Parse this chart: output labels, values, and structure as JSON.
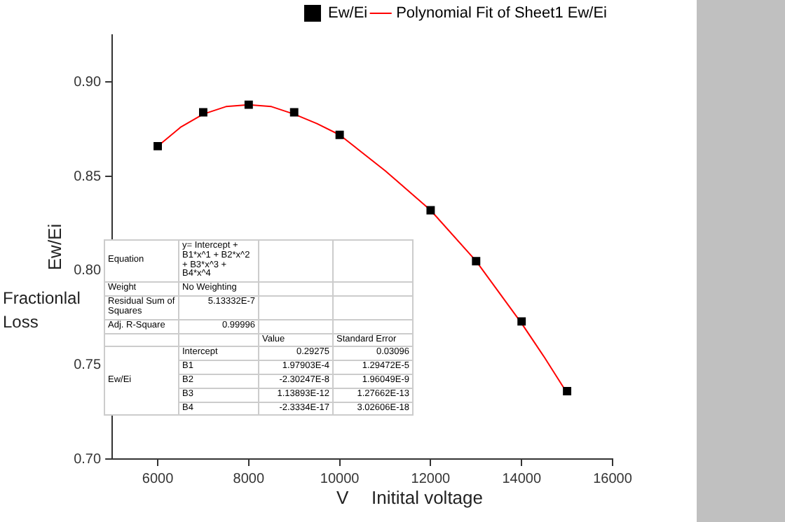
{
  "chart_data": {
    "type": "scatter",
    "xlabel": "Initital voltage",
    "ylabel": "Ew/Ei",
    "xlim": [
      5000,
      16000
    ],
    "xticks": [
      6000,
      8000,
      10000,
      12000,
      14000,
      16000
    ],
    "ylim": [
      0.7,
      0.925
    ],
    "yticks": [
      {
        "value": 0.7,
        "label": "0.70"
      },
      {
        "value": 0.75,
        "label": "0.75"
      },
      {
        "value": 0.8,
        "label": "0.80"
      },
      {
        "value": 0.85,
        "label": "0.85"
      },
      {
        "value": 0.9,
        "label": "0.90"
      }
    ],
    "grid": false,
    "legend": "top right",
    "series": [
      {
        "name": "Ew/Ei",
        "marker": "square",
        "color": "#000000",
        "x": [
          6000,
          7000,
          8000,
          9000,
          10000,
          12000,
          13000,
          14000,
          15000
        ],
        "values": [
          0.866,
          0.884,
          0.888,
          0.884,
          0.872,
          0.832,
          0.805,
          0.773,
          0.736
        ]
      },
      {
        "name": "Polynomial Fit of Sheet1 Ew/Ei",
        "type": "line",
        "marker": "none",
        "color": "#ff0000",
        "x": [
          6000,
          6500,
          7000,
          7500,
          8000,
          8500,
          9000,
          9500,
          10000,
          11000,
          12000,
          13000,
          14000,
          14500,
          15000
        ],
        "values": [
          0.866,
          0.876,
          0.883,
          0.887,
          0.888,
          0.887,
          0.883,
          0.878,
          0.872,
          0.853,
          0.832,
          0.805,
          0.772,
          0.754,
          0.735
        ]
      }
    ],
    "annotations": [
      "Fractionlal Loss",
      "V",
      "Equation",
      "y= Intercept + B1*x^1 + B2*x^2 + B3*x^3 + B4*x^4",
      "Weight",
      "No Weighting",
      "Residual Sum of Squares",
      "5.13332E-7",
      "Adj. R-Square",
      "0.99996",
      "Value",
      "Standard Error",
      "Ew/Ei",
      "Intercept",
      "0.29275",
      "0.03096",
      "B1",
      "1.97903E-4",
      "1.29472E-5",
      "B2",
      "-2.30247E-8",
      "1.96049E-9",
      "B3",
      "1.13893E-12",
      "1.27662E-13",
      "B4",
      "-2.3334E-17",
      "3.02606E-18"
    ]
  }
}
